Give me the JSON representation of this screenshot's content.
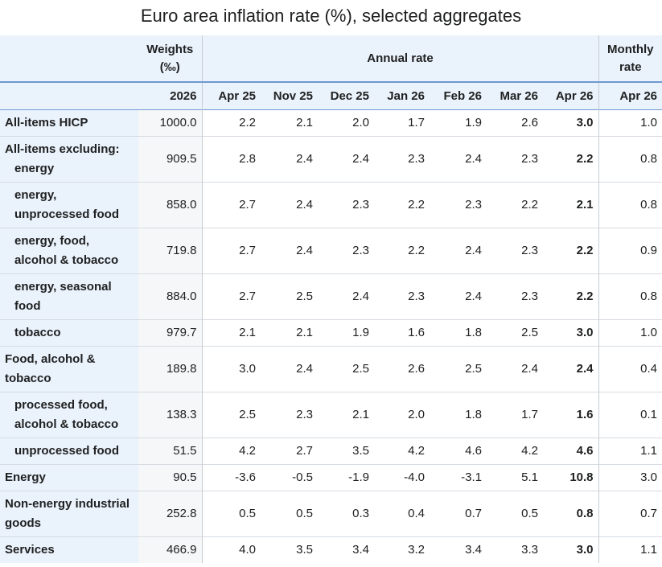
{
  "title": "Euro area inflation rate (%), selected aggregates",
  "header": {
    "weights": "Weights",
    "weights_unit": "(‰)",
    "annual_rate": "Annual rate",
    "monthly_rate_line1": "Monthly",
    "monthly_rate_line2": "rate",
    "weights_year": "2026",
    "periods": [
      "Apr 25",
      "Nov 25",
      "Dec 25",
      "Jan 26",
      "Feb 26",
      "Mar 26",
      "Apr 26"
    ],
    "monthly_period": "Apr 26"
  },
  "rows": [
    {
      "label": "All-items HICP",
      "weight": "1000.0",
      "values": [
        "2.2",
        "2.1",
        "2.0",
        "1.7",
        "1.9",
        "2.6",
        "3.0"
      ],
      "monthly": "1.0"
    },
    {
      "label": "All-items excluding:",
      "sublabel": "energy",
      "weight": "909.5",
      "values": [
        "2.8",
        "2.4",
        "2.4",
        "2.3",
        "2.4",
        "2.3",
        "2.2"
      ],
      "monthly": "0.8"
    },
    {
      "label": "energy, unprocessed food",
      "weight": "858.0",
      "values": [
        "2.7",
        "2.4",
        "2.3",
        "2.2",
        "2.3",
        "2.2",
        "2.1"
      ],
      "monthly": "0.8"
    },
    {
      "label": "energy, food, alcohol & tobacco",
      "weight": "719.8",
      "values": [
        "2.7",
        "2.4",
        "2.3",
        "2.2",
        "2.4",
        "2.3",
        "2.2"
      ],
      "monthly": "0.9"
    },
    {
      "label": "energy, seasonal food",
      "weight": "884.0",
      "values": [
        "2.7",
        "2.5",
        "2.4",
        "2.3",
        "2.4",
        "2.3",
        "2.2"
      ],
      "monthly": "0.8"
    },
    {
      "label": "tobacco",
      "weight": "979.7",
      "values": [
        "2.1",
        "2.1",
        "1.9",
        "1.6",
        "1.8",
        "2.5",
        "3.0"
      ],
      "monthly": "1.0"
    },
    {
      "label": "Food, alcohol & tobacco",
      "weight": "189.8",
      "values": [
        "3.0",
        "2.4",
        "2.5",
        "2.6",
        "2.5",
        "2.4",
        "2.4"
      ],
      "monthly": "0.4"
    },
    {
      "label": "processed food, alcohol & tobacco",
      "weight": "138.3",
      "values": [
        "2.5",
        "2.3",
        "2.1",
        "2.0",
        "1.8",
        "1.7",
        "1.6"
      ],
      "monthly": "0.1"
    },
    {
      "label": "unprocessed food",
      "weight": "51.5",
      "values": [
        "4.2",
        "2.7",
        "3.5",
        "4.2",
        "4.6",
        "4.2",
        "4.6"
      ],
      "monthly": "1.1"
    },
    {
      "label": "Energy",
      "weight": "90.5",
      "values": [
        "-3.6",
        "-0.5",
        "-1.9",
        "-4.0",
        "-3.1",
        "5.1",
        "10.8"
      ],
      "monthly": "3.0"
    },
    {
      "label": "Non-energy industrial goods",
      "weight": "252.8",
      "values": [
        "0.5",
        "0.5",
        "0.3",
        "0.4",
        "0.7",
        "0.5",
        "0.8"
      ],
      "monthly": "0.7"
    },
    {
      "label": "Services",
      "weight": "466.9",
      "values": [
        "4.0",
        "3.5",
        "3.4",
        "3.2",
        "3.4",
        "3.3",
        "3.0"
      ],
      "monthly": "1.1"
    }
  ]
}
